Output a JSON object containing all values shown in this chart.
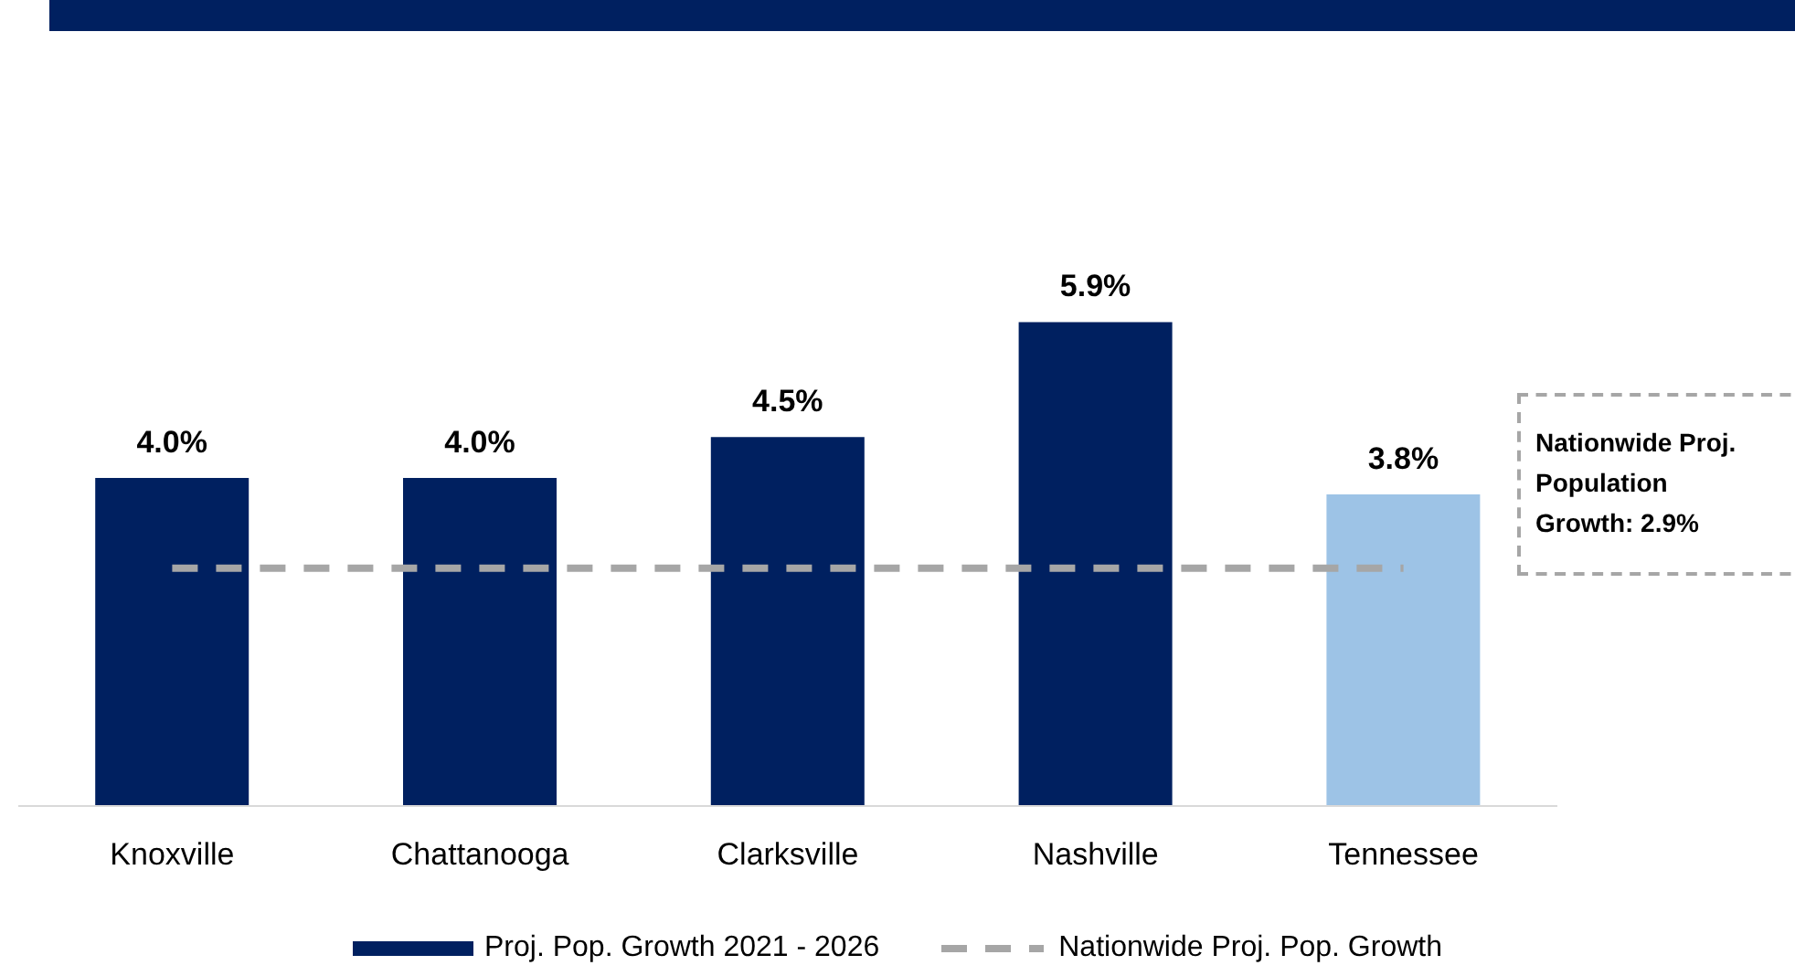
{
  "chart_data": {
    "type": "bar",
    "categories": [
      "Knoxville",
      "Chattanooga",
      "Clarksville",
      "Nashville",
      "Tennessee"
    ],
    "series": [
      {
        "name": "Proj. Pop. Growth 2021 - 2026",
        "color": "#002060",
        "colors": [
          "#002060",
          "#002060",
          "#002060",
          "#002060",
          "#9dc3e6"
        ],
        "values": [
          4.0,
          4.0,
          4.5,
          5.9,
          3.8
        ],
        "value_labels": [
          "4.0%",
          "4.0%",
          "4.5%",
          "5.9%",
          "3.8%"
        ]
      }
    ],
    "tick_labels": "x",
    "legend": "bottom",
    "ref_lines": [
      {
        "axis": "y",
        "value": 2.9,
        "label": "Nationwide Proj. Pop. Growth",
        "color": "#a6a6a6",
        "line_style": "dashed"
      }
    ],
    "annotations": [
      "Nationwide Proj. Population Growth: 2.9%"
    ]
  }
}
